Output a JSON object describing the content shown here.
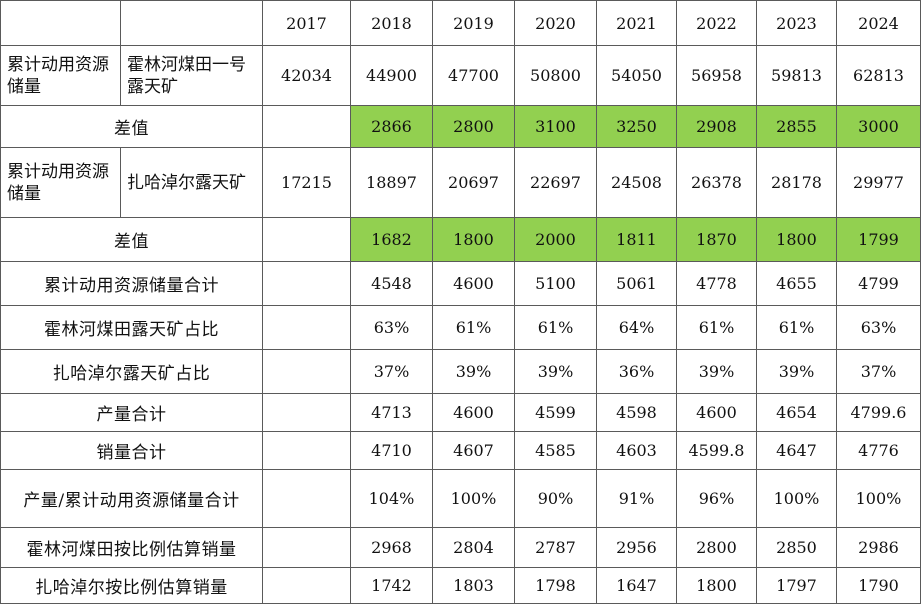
{
  "years": [
    "2017",
    "2018",
    "2019",
    "2020",
    "2021",
    "2022",
    "2023",
    "2024"
  ],
  "huolinhe": {
    "group_label": "累计动用资源储量",
    "mine_label": "霍林河煤田一号露天矿",
    "values": [
      "42034",
      "44900",
      "47700",
      "50800",
      "54050",
      "56958",
      "59813",
      "62813"
    ],
    "diff_label": "差值",
    "diffs": [
      "2866",
      "2800",
      "3100",
      "3250",
      "2908",
      "2855",
      "3000"
    ]
  },
  "zhahanaoer": {
    "group_label": "累计动用资源储量",
    "mine_label": "扎哈淖尔露天矿",
    "values": [
      "17215",
      "18897",
      "20697",
      "22697",
      "24508",
      "26378",
      "28178",
      "29977"
    ],
    "diff_label": "差值",
    "diffs": [
      "1682",
      "1800",
      "2000",
      "1811",
      "1870",
      "1800",
      "1799"
    ]
  },
  "summary_rows": [
    {
      "label": "累计动用资源储量合计",
      "values": [
        "4548",
        "4600",
        "5100",
        "5061",
        "4778",
        "4655",
        "4799"
      ]
    },
    {
      "label": "霍林河煤田露天矿占比",
      "values": [
        "63%",
        "61%",
        "61%",
        "64%",
        "61%",
        "61%",
        "63%"
      ]
    },
    {
      "label": "扎哈淖尔露天矿占比",
      "values": [
        "37%",
        "39%",
        "39%",
        "36%",
        "39%",
        "39%",
        "37%"
      ]
    },
    {
      "label": "产量合计",
      "values": [
        "4713",
        "4600",
        "4599",
        "4598",
        "4600",
        "4654",
        "4799.6"
      ]
    },
    {
      "label": "销量合计",
      "values": [
        "4710",
        "4607",
        "4585",
        "4603",
        "4599.8",
        "4647",
        "4776"
      ]
    },
    {
      "label": "产量/累计动用资源储量合计",
      "values": [
        "104%",
        "100%",
        "90%",
        "91%",
        "96%",
        "100%",
        "100%"
      ]
    },
    {
      "label": "霍林河煤田按比例估算销量",
      "values": [
        "2968",
        "2804",
        "2787",
        "2956",
        "2800",
        "2850",
        "2986"
      ]
    },
    {
      "label": "扎哈淖尔按比例估算销量",
      "values": [
        "1742",
        "1803",
        "1798",
        "1647",
        "1800",
        "1797",
        "1790"
      ]
    }
  ],
  "colors": {
    "diff_highlight": "#92d050",
    "border": "#5a5a5a"
  }
}
